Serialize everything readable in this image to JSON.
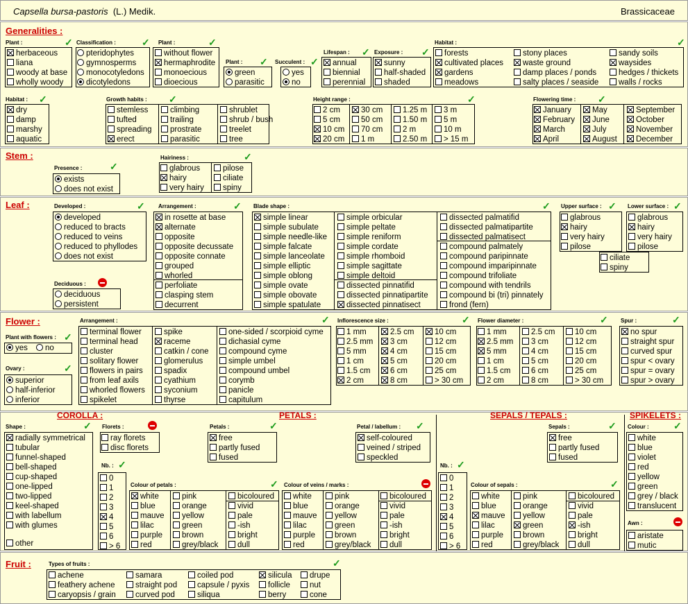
{
  "header": {
    "species": "Capsella bursa-pastoris",
    "author": "(L.) Medik.",
    "family": "Brassicaceae"
  },
  "sections": {
    "generalities": "Generalities :",
    "stem": "Stem :",
    "leaf": "Leaf :",
    "flower": "Flower :",
    "fruit": "Fruit :",
    "corolla": "COROLLA :",
    "petals": "PETALS :",
    "sepals": "SEPALS / TEPALS :",
    "spikelets": "SPIKELETS :"
  },
  "titles": {
    "plant1": "Plant :",
    "classification": "Classification :",
    "plant2": "Plant :",
    "plant3": "Plant :",
    "succulent": "Succulent :",
    "lifespan": "Lifespan :",
    "exposure": "Exposure :",
    "habitat1": "Habitat :",
    "habitat2": "Habitat :",
    "growth": "Growth habits :",
    "height": "Height range :",
    "flowering": "Flowering time :",
    "presence": "Presence :",
    "hairiness": "Hairiness :",
    "developed": "Developed :",
    "arrangement": "Arrangement :",
    "blade": "Blade shape :",
    "upper": "Upper surface :",
    "lower": "Lower surface :",
    "deciduous": "Deciduous :",
    "plantflowers": "Plant with flowers :",
    "farr": "Arrangement :",
    "infl": "Inflorescence size :",
    "fdiam": "Flower diameter :",
    "spur": "Spur :",
    "ovary": "Ovary :",
    "shape": "Shape :",
    "florets": "Florets :",
    "nb1": "Nb. :",
    "colpet": "Colour of petals :",
    "colvein": "Colour of veins / marks :",
    "petals": "Petals :",
    "petlab": "Petal / labellum :",
    "sepals": "Sepals :",
    "nb2": "Nb. :",
    "colsep": "Colour of sepals :",
    "colour": "Colour :",
    "awn": "Awn :",
    "fruits": "Types of fruits :"
  },
  "plant1": [
    "herbaceous",
    "liana",
    "woody at base",
    "wholly woody"
  ],
  "classification": [
    "pteridophytes",
    "gymnosperms",
    "monocotyledons",
    "dicotyledons"
  ],
  "plant2": [
    "without flower",
    "hermaphrodite",
    "monoecious",
    "dioecious"
  ],
  "plant3": [
    "green",
    "parasitic"
  ],
  "succulent": [
    "yes",
    "no"
  ],
  "lifespan": [
    "annual",
    "biennial",
    "perennial"
  ],
  "exposure": [
    "sunny",
    "half-shaded",
    "shaded"
  ],
  "habitat1": [
    "forests",
    "cultivated places",
    "gardens",
    "meadows",
    "stony places",
    "waste ground",
    "damp places / ponds",
    "salty places / seaside",
    "sandy soils",
    "waysides",
    "hedges / thickets",
    "walls / rocks"
  ],
  "habitat2": [
    "dry",
    "damp",
    "marshy",
    "aquatic"
  ],
  "growth": [
    "stemless",
    "tufted",
    "spreading",
    "erect",
    "climbing",
    "trailing",
    "prostrate",
    "parasitic",
    "shrublet",
    "shrub / bush",
    "treelet",
    "tree"
  ],
  "height": [
    "2 cm",
    "5 cm",
    "10 cm",
    "20 cm",
    "30 cm",
    "50 cm",
    "70 cm",
    "1 m",
    "1.25 m",
    "1.50 m",
    "2 m",
    "2.50 m",
    "3 m",
    "5 m",
    "10 m",
    "> 15 m"
  ],
  "flowering": [
    "January",
    "February",
    "March",
    "April",
    "May",
    "June",
    "July",
    "August",
    "September",
    "October",
    "November",
    "December"
  ],
  "presence": [
    "exists",
    "does not exist"
  ],
  "hairiness": [
    "glabrous",
    "hairy",
    "very hairy",
    "pilose",
    "ciliate",
    "spiny"
  ],
  "developed": [
    "developed",
    "reduced to bracts",
    "reduced to veins",
    "reduced to phyllodes",
    "does not exist"
  ],
  "deciduous": [
    "deciduous",
    "persistent"
  ],
  "arrangement": [
    "in rosette at base",
    "alternate",
    "opposite",
    "opposite decussate",
    "opposite connate",
    "grouped",
    "whorled",
    "perfoliate",
    "clasping stem",
    "decurrent"
  ],
  "blade": [
    "simple linear",
    "simple subulate",
    "simple needle-like",
    "simple falcate",
    "simple lanceolate",
    "simple elliptic",
    "simple oblong",
    "simple ovate",
    "simple obovate",
    "simple spatulate",
    "simple orbicular",
    "simple peltate",
    "simple reniform",
    "simple cordate",
    "simple rhomboid",
    "simple sagittate",
    "simple deltoid",
    "dissected pinnatifid",
    "dissected pinnatipartite",
    "dissected pinnatisect",
    "dissected palmatifid",
    "dissected palmatipartite",
    "dissected palmatisect",
    "compound palmately",
    "compound paripinnate",
    "compound imparipinnate",
    "compound trifoliate",
    "compound with tendrils",
    "compound bi (tri) pinnately",
    "frond  (fern)"
  ],
  "upper": [
    "glabrous",
    "hairy",
    "very hairy",
    "pilose"
  ],
  "lower": [
    "glabrous",
    "hairy",
    "very hairy",
    "pilose"
  ],
  "ciliate": [
    "ciliate",
    "spiny"
  ],
  "plantflowers": [
    "yes",
    "no"
  ],
  "ovary": [
    "superior",
    "half-inferior",
    "inferior"
  ],
  "farr": [
    "terminal flower",
    "terminal head",
    "cluster",
    "solitary flower",
    "flowers in pairs",
    "from leaf axils",
    "whorled flowers",
    "spikelet",
    "spike",
    "raceme",
    "catkin / cone",
    "glomerulus",
    "spadix",
    "cyathium",
    "syconium",
    "thyrse",
    "one-sided / scorpioid cyme",
    "dichasial cyme",
    "compound cyme",
    "simple umbel",
    "compound umbel",
    "corymb",
    "panicle",
    "capitulum"
  ],
  "infl": [
    "1 mm",
    "2.5 mm",
    "5 mm",
    "1 cm",
    "1.5 cm",
    "2 cm",
    "2.5 cm",
    "3 cm",
    "4 cm",
    "5 cm",
    "6 cm",
    "8 cm",
    "10 cm",
    "12 cm",
    "15 cm",
    "20 cm",
    "25 cm",
    "> 30 cm"
  ],
  "fdiam": [
    "1 mm",
    "2.5 mm",
    "5 mm",
    "1 cm",
    "1.5 cm",
    "2 cm",
    "2.5 cm",
    "3 cm",
    "4 cm",
    "5 cm",
    "6 cm",
    "8 cm",
    "10 cm",
    "12 cm",
    "15 cm",
    "20 cm",
    "25 cm",
    "> 30 cm"
  ],
  "spur": [
    "no spur",
    "straight spur",
    "curved spur",
    "spur < ovary",
    "spur = ovary",
    "spur > ovary"
  ],
  "shape": [
    "radially symmetrical",
    "tubular",
    "funnel-shaped",
    "bell-shaped",
    "cup-shaped",
    "one-lipped",
    "two-lipped",
    "keel-shaped",
    "with labellum",
    "with glumes",
    "other"
  ],
  "florets": [
    "ray florets",
    "disc florets"
  ],
  "nb": [
    "0",
    "1",
    "2",
    "3",
    "4",
    "5",
    "6",
    "> 6"
  ],
  "colours": [
    "white",
    "blue",
    "mauve",
    "lilac",
    "purple",
    "red",
    "pink",
    "orange",
    "yellow",
    "green",
    "brown",
    "grey/black",
    "bicoloured",
    "vivid",
    "pale",
    "-ish",
    "bright",
    "dull"
  ],
  "petals": [
    "free",
    "partly fused",
    "fused"
  ],
  "petlab": [
    "self-coloured",
    "veined / striped",
    "speckled"
  ],
  "sepals": [
    "free",
    "partly fused",
    "fused"
  ],
  "spkcolour": [
    "white",
    "blue",
    "violet",
    "red",
    "yellow",
    "green",
    "grey / black",
    "translucent"
  ],
  "awn": [
    "aristate",
    "mutic"
  ],
  "fruits": [
    "achene",
    "feathery achene",
    "caryopsis / grain",
    "samara",
    "straight pod",
    "curved pod",
    "coiled pod",
    "capsule / pyxis",
    "siliqua",
    "silicula",
    "follicle",
    "berry",
    "drupe",
    "nut",
    "cone"
  ],
  "icons": {
    "check": "check-icon",
    "forbidden": "no-entry-icon"
  }
}
